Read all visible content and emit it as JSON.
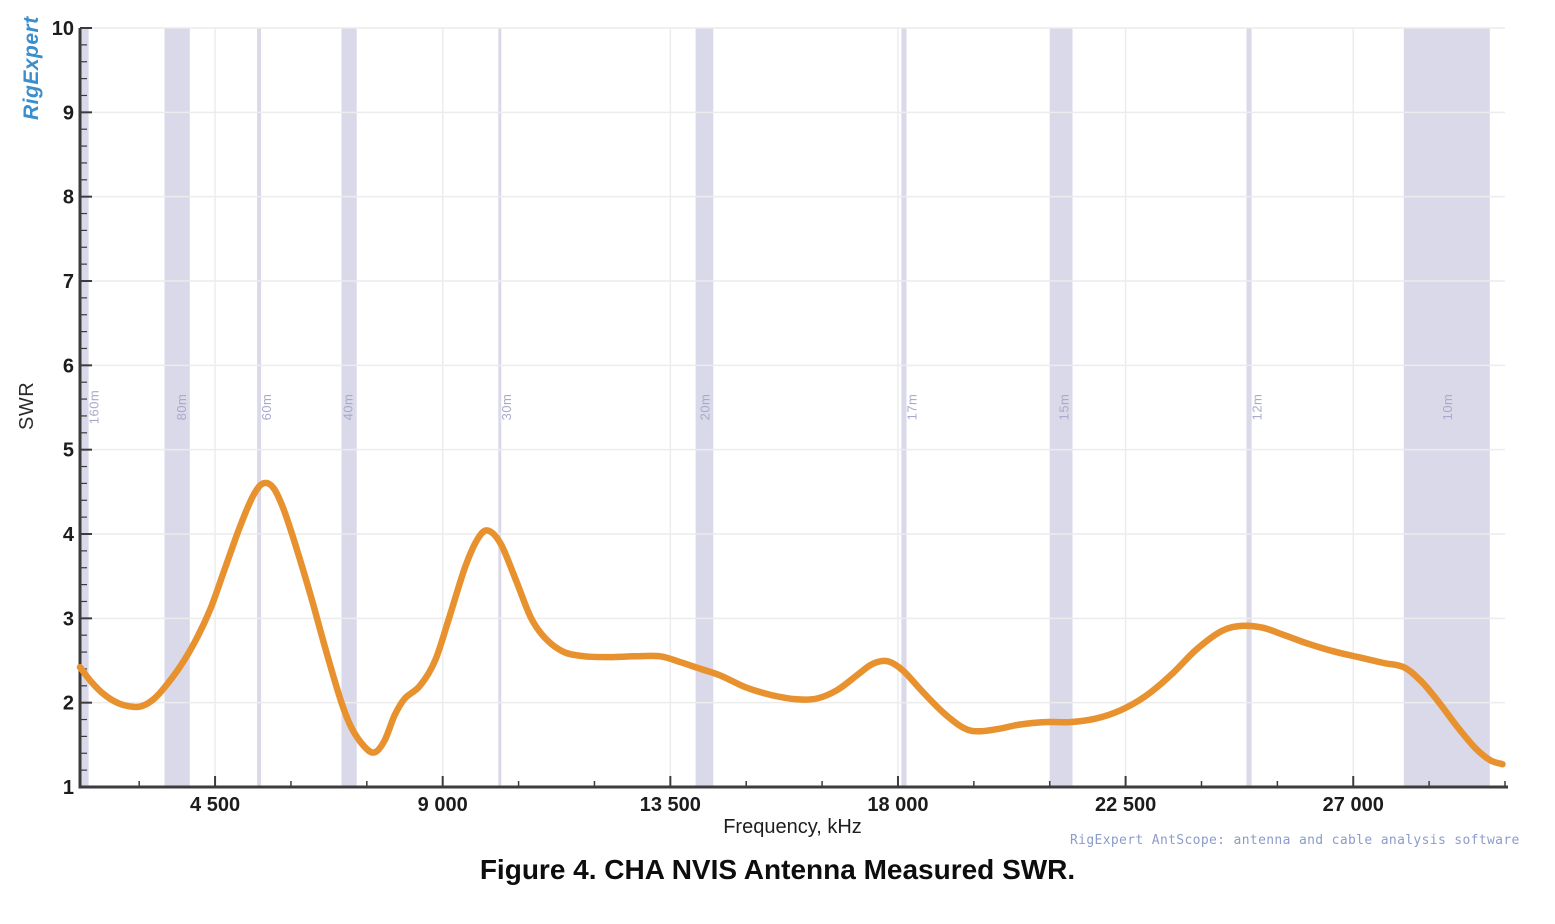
{
  "logo": {
    "text": "RigExpert"
  },
  "credit": "RigExpert AntScope: antenna and cable analysis software",
  "caption": "Figure 4. CHA NVIS Antenna Measured SWR.",
  "colors": {
    "curve": "#e8912f",
    "band_fill": "#d9d9e9",
    "band_label": "#a9a9cb",
    "grid": "#ececec",
    "axis": "#3c3c3c",
    "tick_label": "#1c1c1c",
    "logo_blue": "#3a8ecd",
    "credit_blue": "#8b9cca"
  },
  "chart_data": {
    "type": "line",
    "title": "",
    "xlabel": "Frequency, kHz",
    "ylabel": "SWR",
    "xlim": [
      1830,
      30000
    ],
    "ylim": [
      1,
      10
    ],
    "grid": true,
    "legend": "none",
    "x_major_ticks": [
      4500,
      9000,
      13500,
      18000,
      22500,
      27000
    ],
    "x_tick_labels": [
      "4 500",
      "9 000",
      "13 500",
      "18 000",
      "22 500",
      "27 000"
    ],
    "x_minor_step": 1500,
    "y_major_ticks": [
      1,
      2,
      3,
      4,
      5,
      6,
      7,
      8,
      9,
      10
    ],
    "y_minor_step": 0.2,
    "bands": [
      {
        "label": "160m",
        "from": 1810,
        "to": 2000
      },
      {
        "label": "80m",
        "from": 3500,
        "to": 4000
      },
      {
        "label": "60m",
        "from": 5330,
        "to": 5410
      },
      {
        "label": "40m",
        "from": 7000,
        "to": 7300
      },
      {
        "label": "30m",
        "from": 10100,
        "to": 10150
      },
      {
        "label": "20m",
        "from": 14000,
        "to": 14350
      },
      {
        "label": "17m",
        "from": 18068,
        "to": 18168
      },
      {
        "label": "15m",
        "from": 21000,
        "to": 21450
      },
      {
        "label": "12m",
        "from": 24890,
        "to": 24990
      },
      {
        "label": "10m",
        "from": 28000,
        "to": 29700
      }
    ],
    "series": [
      {
        "name": "Measured SWR",
        "points": [
          [
            1830,
            2.42
          ],
          [
            2050,
            2.25
          ],
          [
            2300,
            2.1
          ],
          [
            2600,
            1.99
          ],
          [
            2900,
            1.95
          ],
          [
            3100,
            1.97
          ],
          [
            3300,
            2.05
          ],
          [
            3500,
            2.18
          ],
          [
            3800,
            2.42
          ],
          [
            4100,
            2.72
          ],
          [
            4400,
            3.1
          ],
          [
            4700,
            3.6
          ],
          [
            5000,
            4.1
          ],
          [
            5250,
            4.45
          ],
          [
            5450,
            4.6
          ],
          [
            5650,
            4.55
          ],
          [
            5850,
            4.3
          ],
          [
            6100,
            3.85
          ],
          [
            6400,
            3.25
          ],
          [
            6700,
            2.6
          ],
          [
            7000,
            2.0
          ],
          [
            7200,
            1.7
          ],
          [
            7450,
            1.48
          ],
          [
            7650,
            1.41
          ],
          [
            7850,
            1.55
          ],
          [
            8050,
            1.85
          ],
          [
            8250,
            2.05
          ],
          [
            8550,
            2.2
          ],
          [
            8850,
            2.5
          ],
          [
            9150,
            3.05
          ],
          [
            9450,
            3.62
          ],
          [
            9700,
            3.95
          ],
          [
            9900,
            4.04
          ],
          [
            10150,
            3.88
          ],
          [
            10450,
            3.45
          ],
          [
            10750,
            3.0
          ],
          [
            11050,
            2.75
          ],
          [
            11400,
            2.6
          ],
          [
            11800,
            2.55
          ],
          [
            12300,
            2.54
          ],
          [
            12800,
            2.55
          ],
          [
            13300,
            2.55
          ],
          [
            13700,
            2.48
          ],
          [
            14100,
            2.4
          ],
          [
            14500,
            2.32
          ],
          [
            15000,
            2.18
          ],
          [
            15500,
            2.09
          ],
          [
            16000,
            2.04
          ],
          [
            16400,
            2.05
          ],
          [
            16800,
            2.15
          ],
          [
            17200,
            2.33
          ],
          [
            17500,
            2.46
          ],
          [
            17800,
            2.49
          ],
          [
            18100,
            2.38
          ],
          [
            18500,
            2.12
          ],
          [
            18900,
            1.88
          ],
          [
            19300,
            1.7
          ],
          [
            19600,
            1.66
          ],
          [
            20000,
            1.69
          ],
          [
            20400,
            1.74
          ],
          [
            20900,
            1.77
          ],
          [
            21400,
            1.77
          ],
          [
            21900,
            1.81
          ],
          [
            22400,
            1.91
          ],
          [
            22900,
            2.08
          ],
          [
            23400,
            2.33
          ],
          [
            23900,
            2.63
          ],
          [
            24400,
            2.85
          ],
          [
            24800,
            2.91
          ],
          [
            25200,
            2.89
          ],
          [
            25600,
            2.81
          ],
          [
            26100,
            2.7
          ],
          [
            26600,
            2.61
          ],
          [
            27100,
            2.54
          ],
          [
            27600,
            2.47
          ],
          [
            28000,
            2.42
          ],
          [
            28350,
            2.25
          ],
          [
            28700,
            2.0
          ],
          [
            29050,
            1.72
          ],
          [
            29400,
            1.47
          ],
          [
            29700,
            1.32
          ],
          [
            29950,
            1.27
          ]
        ]
      }
    ]
  }
}
